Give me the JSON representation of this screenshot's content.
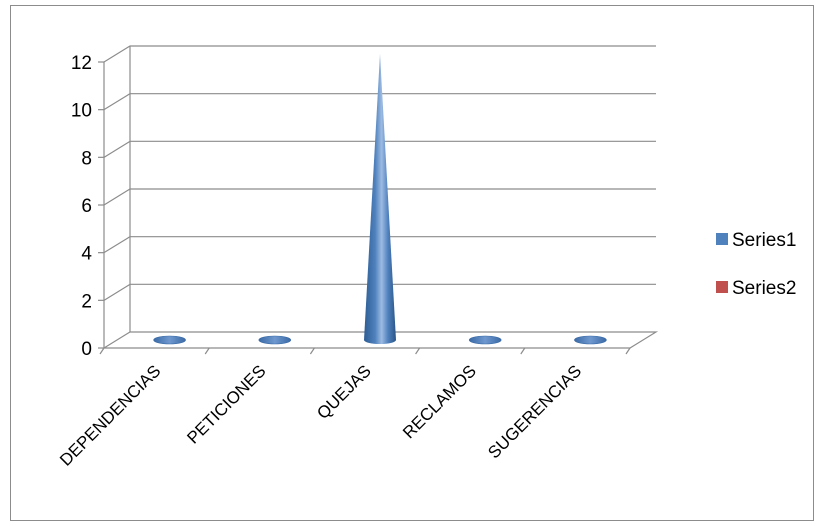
{
  "chart_data": {
    "type": "bar",
    "style": "3d-cone",
    "categories": [
      "DEPENDENCIAS",
      "PETICIONES",
      "QUEJAS",
      "RECLAMOS",
      "SUGERENCIAS"
    ],
    "series": [
      {
        "name": "Series1",
        "color": "#4f81bd",
        "values": [
          0,
          0,
          12,
          0,
          0
        ]
      },
      {
        "name": "Series2",
        "color": "#c0504d",
        "values": [
          0,
          0,
          0,
          0,
          0
        ]
      }
    ],
    "title": "",
    "xlabel": "",
    "ylabel": "",
    "ylim": [
      0,
      12
    ],
    "yticks": [
      0,
      2,
      4,
      6,
      8,
      10,
      12
    ],
    "grid": true,
    "legend": "right"
  }
}
